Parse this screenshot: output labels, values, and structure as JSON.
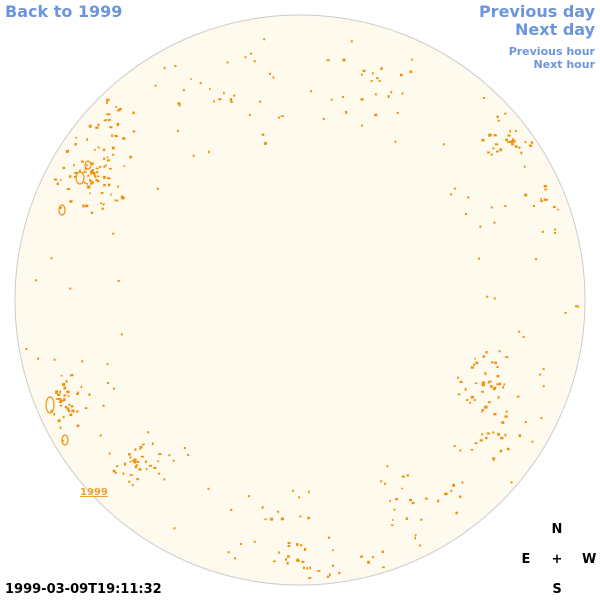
{
  "nav": {
    "back_label": "Back to 1999",
    "prev_day_label": "Previous day",
    "next_day_label": "Next day",
    "prev_hour_label": "Previous hour",
    "next_hour_label": "Next hour"
  },
  "timestamp": "1999-03-09T19:11:32",
  "region_label": "1999",
  "compass": {
    "north": "N",
    "east": "E",
    "center": "+",
    "west": "W",
    "south": "S"
  },
  "colors": {
    "link": "#6b96dd",
    "disc_fill": "#fffaee",
    "disc_stroke": "#cccccc",
    "feature": "#f0900a",
    "region_label": "#f0a030"
  }
}
